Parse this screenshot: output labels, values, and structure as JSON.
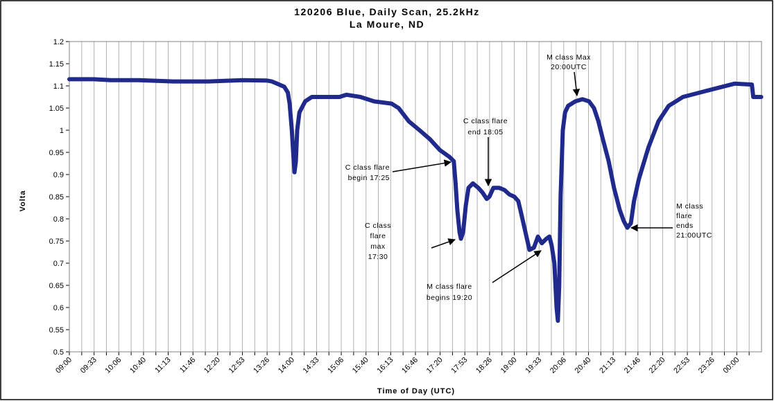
{
  "chart_data": {
    "type": "line",
    "title": [
      "120206 Blue, Daily Scan, 25.2kHz",
      "La Moure, ND"
    ],
    "y_label": "Volta",
    "x_label": "Time of Day (UTC)",
    "xlim": [
      9,
      24.556
    ],
    "ylim": [
      0.5,
      1.2
    ],
    "yticks": [
      0.5,
      0.55,
      0.6,
      0.65,
      0.7,
      0.75,
      0.8,
      0.85,
      0.9,
      0.95,
      1,
      1.05,
      1.1,
      1.15,
      1.2
    ],
    "xticks": [
      {
        "value": 9,
        "label": "09:00"
      },
      {
        "value": 9.556,
        "label": "09:33"
      },
      {
        "value": 10.111,
        "label": "10:06"
      },
      {
        "value": 10.667,
        "label": "10:40"
      },
      {
        "value": 11.222,
        "label": "11:13"
      },
      {
        "value": 11.778,
        "label": "11:46"
      },
      {
        "value": 12.333,
        "label": "12:20"
      },
      {
        "value": 12.889,
        "label": "12:53"
      },
      {
        "value": 13.444,
        "label": "13:26"
      },
      {
        "value": 14,
        "label": "14:00"
      },
      {
        "value": 14.556,
        "label": "14:33"
      },
      {
        "value": 15.111,
        "label": "15:06"
      },
      {
        "value": 15.667,
        "label": "15:40"
      },
      {
        "value": 16.222,
        "label": "16:13"
      },
      {
        "value": 16.778,
        "label": "16:46"
      },
      {
        "value": 17.333,
        "label": "17:20"
      },
      {
        "value": 17.889,
        "label": "17:53"
      },
      {
        "value": 18.444,
        "label": "18:26"
      },
      {
        "value": 19,
        "label": "19:00"
      },
      {
        "value": 19.556,
        "label": "19:33"
      },
      {
        "value": 20.111,
        "label": "20:06"
      },
      {
        "value": 20.667,
        "label": "20:40"
      },
      {
        "value": 21.222,
        "label": "21:13"
      },
      {
        "value": 21.778,
        "label": "21:46"
      },
      {
        "value": 22.333,
        "label": "22:20"
      },
      {
        "value": 22.889,
        "label": "22:53"
      },
      {
        "value": 23.444,
        "label": "23:26"
      },
      {
        "value": 24,
        "label": "00:00"
      }
    ],
    "minor_xticks": [
      9.278,
      9.833,
      10.389,
      10.944,
      11.5,
      12.056,
      12.611,
      13.167,
      13.722,
      14.278,
      14.833,
      15.389,
      15.944,
      16.5,
      17.056,
      17.611,
      18.167,
      18.722,
      19.278,
      19.833,
      20.389,
      20.944,
      21.5,
      22.056,
      22.611,
      23.167,
      23.722,
      24.278
    ],
    "grid": true,
    "series": [
      {
        "name": "120206 Blue",
        "color": "#1f2a8c",
        "x": [
          9.0,
          9.55,
          9.93,
          10.56,
          11.34,
          12.12,
          12.89,
          13.44,
          13.55,
          13.67,
          13.83,
          13.91,
          13.95,
          14.0,
          14.03,
          14.06,
          14.09,
          14.12,
          14.17,
          14.3,
          14.45,
          14.76,
          15.07,
          15.23,
          15.54,
          15.85,
          16.24,
          16.4,
          16.63,
          16.87,
          17.1,
          17.33,
          17.54,
          17.64,
          17.68,
          17.72,
          17.77,
          17.8,
          17.85,
          17.91,
          17.97,
          18.07,
          18.19,
          18.28,
          18.38,
          18.44,
          18.53,
          18.66,
          18.78,
          18.89,
          19.0,
          19.09,
          19.16,
          19.25,
          19.34,
          19.44,
          19.53,
          19.62,
          19.72,
          19.79,
          19.84,
          19.9,
          19.95,
          19.98,
          20.01,
          20.04,
          20.09,
          20.14,
          20.21,
          20.37,
          20.53,
          20.68,
          20.79,
          20.89,
          20.99,
          21.12,
          21.24,
          21.37,
          21.46,
          21.54,
          21.62,
          21.69,
          21.8,
          22.01,
          22.24,
          22.47,
          22.79,
          23.17,
          23.56,
          23.95,
          24.34,
          24.37,
          24.55
        ],
        "values": [
          1.115,
          1.115,
          1.113,
          1.113,
          1.11,
          1.11,
          1.113,
          1.112,
          1.11,
          1.105,
          1.098,
          1.085,
          1.06,
          1.0,
          0.95,
          0.905,
          0.93,
          1.0,
          1.04,
          1.065,
          1.075,
          1.075,
          1.075,
          1.08,
          1.075,
          1.065,
          1.06,
          1.05,
          1.02,
          1.0,
          0.98,
          0.955,
          0.94,
          0.93,
          0.88,
          0.82,
          0.77,
          0.755,
          0.77,
          0.83,
          0.87,
          0.88,
          0.87,
          0.86,
          0.845,
          0.85,
          0.87,
          0.87,
          0.865,
          0.855,
          0.85,
          0.84,
          0.81,
          0.77,
          0.73,
          0.735,
          0.76,
          0.745,
          0.755,
          0.76,
          0.74,
          0.7,
          0.6,
          0.57,
          0.65,
          0.85,
          1.0,
          1.04,
          1.055,
          1.065,
          1.07,
          1.065,
          1.05,
          1.02,
          0.98,
          0.93,
          0.87,
          0.82,
          0.795,
          0.78,
          0.79,
          0.84,
          0.89,
          0.96,
          1.02,
          1.055,
          1.075,
          1.085,
          1.095,
          1.105,
          1.103,
          1.075,
          1.075
        ]
      }
    ],
    "annotations": [
      [
        "M class Max",
        "20:00UTC"
      ],
      [
        "C class flare",
        "end 18:05"
      ],
      [
        "C class flare",
        "begin 17:25"
      ],
      [
        "C class",
        "flare",
        "max",
        "17:30"
      ],
      [
        "M class flare",
        "begins 19:20"
      ],
      [
        "M class",
        "flare",
        "ends",
        "21:00UTC"
      ]
    ]
  }
}
